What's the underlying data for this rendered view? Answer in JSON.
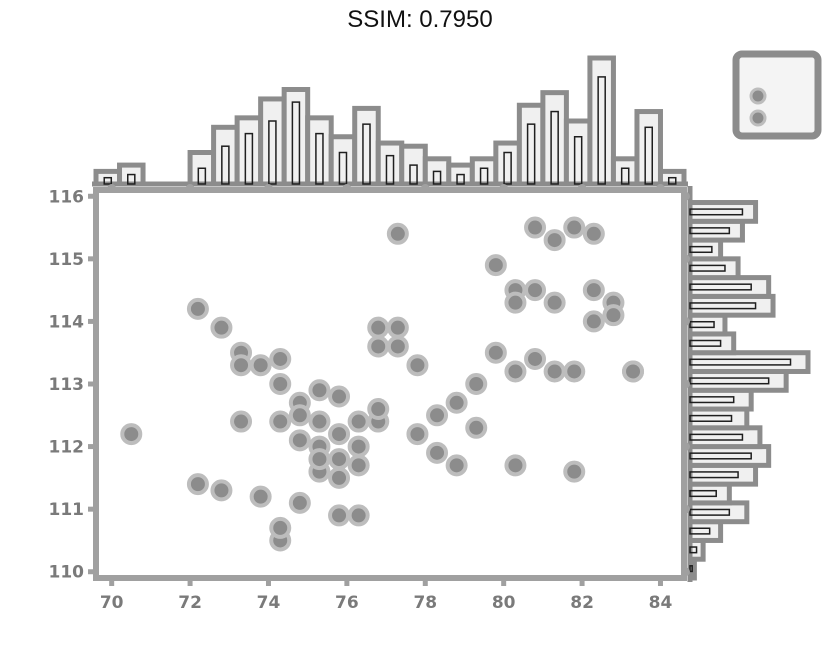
{
  "figure": {
    "title": "SSIM: 0.7950"
  },
  "chart_data": {
    "type": "scatter",
    "title": "",
    "xlabel": "",
    "ylabel": "",
    "xlim": [
      69.6,
      84.6
    ],
    "ylim": [
      109.9,
      116.1
    ],
    "x_ticks": [
      "70",
      "72",
      "74",
      "76",
      "78",
      "80",
      "82",
      "84"
    ],
    "y_ticks": [
      "110",
      "111",
      "112",
      "113",
      "114",
      "115",
      "116"
    ],
    "legend": {
      "position": "upper-right",
      "title": "",
      "entries": [
        "",
        ""
      ]
    },
    "style": {
      "marker_color": "#8c8c8c",
      "marker_edge": "#bdbdbd",
      "axis_color": "#a0a0a0",
      "hist_fill": "#f0f0f0",
      "hist_edge": "#8c8c8c",
      "hist_inner": "#1f1f1f"
    },
    "series": [
      {
        "x": [
          70.5,
          72.2,
          72.8,
          73.3,
          73.8,
          73.3,
          74.3,
          74.3,
          74.8,
          74.3,
          74.8,
          75.3,
          74.8,
          75.3,
          75.8,
          75.3,
          75.8,
          75.3,
          75.8,
          76.3,
          76.8,
          76.3,
          76.8,
          77.3,
          76.8,
          77.3,
          77.8,
          78.3,
          78.8,
          79.3,
          79.8,
          80.3,
          79.8,
          80.3,
          80.8,
          81.3,
          80.3,
          80.8,
          81.3,
          81.8,
          82.3,
          82.8,
          82.3,
          82.8,
          83.3,
          83.3,
          80.8,
          81.3,
          81.8,
          78.8,
          77.3,
          74.3,
          73.8,
          75.3,
          76.3,
          73.3,
          72.8,
          74.8,
          75.8,
          76.8,
          77.8,
          79.3,
          80.3,
          81.8,
          82.3,
          72.2,
          74.3,
          75.8,
          76.3,
          78.3
        ],
        "y": [
          112.2,
          114.2,
          113.9,
          113.5,
          113.3,
          113.3,
          113.4,
          113.0,
          112.7,
          112.4,
          112.5,
          112.9,
          112.1,
          112.4,
          112.2,
          112.0,
          111.8,
          111.6,
          111.5,
          111.7,
          112.4,
          112.4,
          113.6,
          113.6,
          113.9,
          113.9,
          113.3,
          112.5,
          112.7,
          113.0,
          113.5,
          114.5,
          114.9,
          114.3,
          114.5,
          114.3,
          113.2,
          113.4,
          113.2,
          113.2,
          114.5,
          114.3,
          114.0,
          114.1,
          113.2,
          113.2,
          115.5,
          115.3,
          115.5,
          111.7,
          115.4,
          110.5,
          111.2,
          111.8,
          110.9,
          112.4,
          111.3,
          111.1,
          112.8,
          112.6,
          112.2,
          112.3,
          111.7,
          111.6,
          115.4,
          111.4,
          110.7,
          110.9,
          112.0,
          111.9
        ]
      }
    ],
    "x_hist": {
      "bin_edges": [
        69.6,
        70.2,
        70.8,
        71.4,
        72.0,
        72.6,
        73.2,
        73.8,
        74.4,
        75.0,
        75.6,
        76.2,
        76.8,
        77.4,
        78.0,
        78.6,
        79.2,
        79.8,
        80.4,
        81.0,
        81.6,
        82.2,
        82.8,
        83.4,
        84.0,
        84.6
      ],
      "counts": [
        0.4,
        0.6,
        0,
        0,
        1.0,
        1.8,
        2.1,
        2.7,
        3.0,
        2.1,
        1.5,
        2.4,
        1.3,
        1.2,
        0.8,
        0.6,
        0.8,
        1.3,
        2.5,
        2.9,
        2.0,
        4.0,
        0.8,
        2.3,
        0.4
      ],
      "inner_counts": [
        0.2,
        0.3,
        0,
        0,
        0.5,
        1.2,
        1.6,
        2.0,
        2.6,
        1.6,
        1.0,
        1.9,
        0.9,
        0.6,
        0.4,
        0.3,
        0.5,
        1.0,
        1.9,
        2.3,
        1.5,
        3.4,
        0.5,
        1.8,
        0.2
      ]
    },
    "y_hist": {
      "bin_edges": [
        109.9,
        110.2,
        110.5,
        110.8,
        111.1,
        111.4,
        111.7,
        112.0,
        112.3,
        112.6,
        112.9,
        113.2,
        113.5,
        113.8,
        114.1,
        114.4,
        114.7,
        115.0,
        115.3,
        115.6,
        115.9
      ],
      "counts": [
        0.2,
        0.6,
        1.4,
        2.6,
        1.8,
        3.0,
        3.6,
        3.2,
        2.6,
        2.8,
        4.4,
        5.4,
        2.0,
        1.6,
        3.8,
        3.6,
        2.2,
        1.4,
        2.4,
        3.0
      ],
      "inner_counts": [
        0.1,
        0.3,
        0.9,
        1.8,
        1.2,
        2.2,
        2.8,
        2.4,
        1.9,
        2.0,
        3.6,
        4.6,
        1.4,
        1.1,
        3.0,
        2.8,
        1.6,
        1.0,
        1.8,
        2.4
      ]
    }
  }
}
